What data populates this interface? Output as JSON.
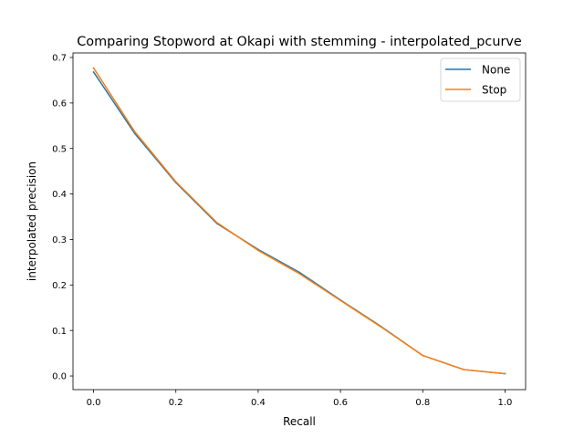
{
  "chart_data": {
    "type": "line",
    "title": "Comparing Stopword at Okapi with stemming - interpolated_pcurve",
    "xlabel": "Recall",
    "ylabel": "interpolated precision",
    "xlim": [
      -0.05,
      1.05
    ],
    "ylim": [
      -0.03,
      0.71
    ],
    "x_ticks": [
      0.0,
      0.2,
      0.4,
      0.6,
      0.8,
      1.0
    ],
    "x_tick_labels": [
      "0.0",
      "0.2",
      "0.4",
      "0.6",
      "0.8",
      "1.0"
    ],
    "y_ticks": [
      0.0,
      0.1,
      0.2,
      0.3,
      0.4,
      0.5,
      0.6,
      0.7
    ],
    "y_tick_labels": [
      "0.0",
      "0.1",
      "0.2",
      "0.3",
      "0.4",
      "0.5",
      "0.6",
      "0.7"
    ],
    "grid": false,
    "legend_position": "top-right",
    "x": [
      0.0,
      0.1,
      0.2,
      0.3,
      0.4,
      0.5,
      0.6,
      0.7,
      0.8,
      0.9,
      1.0
    ],
    "series": [
      {
        "name": "None",
        "color": "#1f77b4",
        "values": [
          0.668,
          0.533,
          0.425,
          0.335,
          0.278,
          0.228,
          0.167,
          0.108,
          0.045,
          0.014,
          0.005
        ]
      },
      {
        "name": "Stop",
        "color": "#ff7f0e",
        "values": [
          0.677,
          0.537,
          0.427,
          0.337,
          0.276,
          0.225,
          0.166,
          0.107,
          0.045,
          0.014,
          0.005
        ]
      }
    ]
  }
}
